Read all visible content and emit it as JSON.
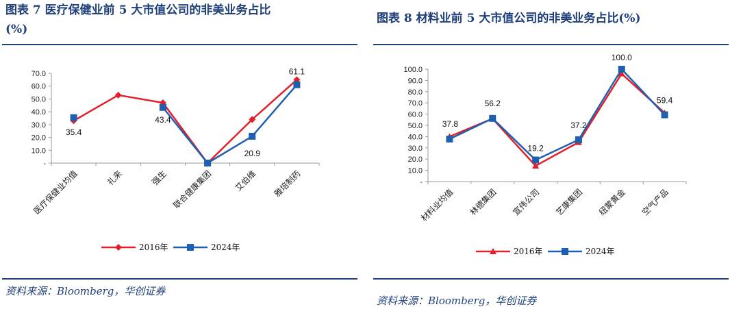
{
  "left": {
    "title_line1": "图表 7   医疗保健业前 5 大市值公司的非美业务占比",
    "title_line2": "(%)",
    "source": "资料来源：Bloomberg，华创证券"
  },
  "right": {
    "title_line1": "图表 8   材料业前 5 大市值公司的非美业务占比(%)",
    "source": "资料来源：Bloomberg，华创证券"
  },
  "chart_data": [
    {
      "type": "line",
      "categories": [
        "医疗保健业均值",
        "礼来",
        "强生",
        "联合健康集团",
        "艾伯维",
        "雅培制药"
      ],
      "series": [
        {
          "name": "2016年",
          "color": "#e0202a",
          "marker": "diamond",
          "values": [
            33.0,
            53.0,
            47.0,
            0.0,
            34.0,
            65.0
          ]
        },
        {
          "name": "2024年",
          "color": "#1f5fb0",
          "marker": "square",
          "values": [
            35.4,
            null,
            43.4,
            0.0,
            20.9,
            61.1
          ]
        }
      ],
      "data_labels": [
        {
          "category": "医疗保健业均值",
          "text": "35.4"
        },
        {
          "category": "强生",
          "text": "43.4"
        },
        {
          "category": "艾伯维",
          "text": "20.9"
        },
        {
          "category": "雅培制药",
          "text": "61.1"
        }
      ],
      "yticks": [
        "-",
        "10.0",
        "20.0",
        "30.0",
        "40.0",
        "50.0",
        "60.0",
        "70.0"
      ],
      "ylim": [
        0,
        70
      ],
      "legend": [
        "2016年",
        "2024年"
      ],
      "legend_position": "bottom"
    },
    {
      "type": "line",
      "categories": [
        "材料业均值",
        "林德集团",
        "宣伟公司",
        "艺康集团",
        "纽蒙黄金",
        "空气产品"
      ],
      "series": [
        {
          "name": "2016年",
          "color": "#e0202a",
          "marker": "triangle",
          "values": [
            40.0,
            56.0,
            14.0,
            35.0,
            96.0,
            61.0
          ]
        },
        {
          "name": "2024年",
          "color": "#1f5fb0",
          "marker": "square",
          "values": [
            37.8,
            56.2,
            19.2,
            37.2,
            100.0,
            59.4
          ]
        }
      ],
      "data_labels": [
        {
          "category": "材料业均值",
          "text": "37.8"
        },
        {
          "category": "林德集团",
          "text": "56.2"
        },
        {
          "category": "宣伟公司",
          "text": "19.2"
        },
        {
          "category": "艺康集团",
          "text": "37.2"
        },
        {
          "category": "纽蒙黄金",
          "text": "100.0"
        },
        {
          "category": "空气产品",
          "text": "59.4"
        }
      ],
      "yticks": [
        "-",
        "10.0",
        "20.0",
        "30.0",
        "40.0",
        "50.0",
        "60.0",
        "70.0",
        "80.0",
        "90.0",
        "100.0"
      ],
      "ylim": [
        0,
        100
      ],
      "legend": [
        "2016年",
        "2024年"
      ],
      "legend_position": "bottom"
    }
  ]
}
